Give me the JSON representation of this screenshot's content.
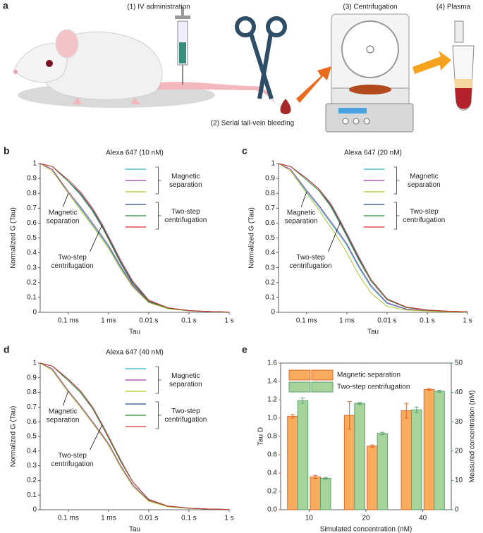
{
  "illustration": {
    "panel": "a",
    "labels": [
      "(1) IV administration",
      "(2) Serial tail-vein bleeding",
      "(3) Centrifugation",
      "(4) Plasma"
    ]
  },
  "chart_data": [
    {
      "type": "line",
      "panel": "b",
      "title": "Alexa 647 (10 nM)",
      "x_label": "Tau",
      "y_label": "Normalized G (Tau)",
      "xscale": "log",
      "x": [
        2e-05,
        4e-05,
        0.0001,
        0.0002,
        0.0004,
        0.0007,
        0.001,
        0.002,
        0.004,
        0.01,
        0.03,
        0.1,
        0.3,
        1
      ],
      "xlim": [
        2e-05,
        1
      ],
      "xticks": [
        {
          "value": 0.0001,
          "label": "0.1 ms"
        },
        {
          "value": 0.001,
          "label": "1 ms"
        },
        {
          "value": 0.01,
          "label": "0.01 s"
        },
        {
          "value": 0.1,
          "label": "0.1 s"
        },
        {
          "value": 1,
          "label": "1 s"
        }
      ],
      "ylim": [
        0,
        1
      ],
      "yticks": [
        0,
        0.1,
        0.2,
        0.3,
        0.4,
        0.5,
        0.6,
        0.7,
        0.8,
        0.9,
        1
      ],
      "series_groups": [
        {
          "label": "Magnetic separation",
          "series": [
            {
              "color": "#2ab7c4",
              "values": [
                1,
                0.96,
                0.8,
                0.7,
                0.59,
                0.5,
                0.44,
                0.3,
                0.18,
                0.07,
                0.025,
                0.01,
                0.005,
                0.002
              ]
            },
            {
              "color": "#9b3aa8",
              "values": [
                1,
                0.96,
                0.81,
                0.71,
                0.6,
                0.51,
                0.45,
                0.31,
                0.18,
                0.07,
                0.026,
                0.011,
                0.005,
                0.002
              ]
            },
            {
              "color": "#b6c22a",
              "values": [
                1,
                0.95,
                0.8,
                0.69,
                0.58,
                0.49,
                0.43,
                0.29,
                0.17,
                0.065,
                0.024,
                0.01,
                0.005,
                0.002
              ]
            }
          ]
        },
        {
          "label": "Two-step centrifugation",
          "series": [
            {
              "color": "#2b4a8c",
              "values": [
                1,
                0.98,
                0.88,
                0.8,
                0.69,
                0.58,
                0.5,
                0.34,
                0.2,
                0.08,
                0.03,
                0.012,
                0.005,
                0.002
              ]
            },
            {
              "color": "#2a8a3a",
              "values": [
                1,
                0.98,
                0.88,
                0.79,
                0.68,
                0.57,
                0.49,
                0.33,
                0.19,
                0.075,
                0.028,
                0.011,
                0.005,
                0.002
              ]
            },
            {
              "color": "#d6322e",
              "values": [
                1,
                0.98,
                0.89,
                0.81,
                0.7,
                0.59,
                0.51,
                0.35,
                0.21,
                0.082,
                0.031,
                0.012,
                0.006,
                0.002
              ]
            }
          ]
        }
      ],
      "annotations": [
        "Magnetic separation",
        "Two-step centrifugation"
      ]
    },
    {
      "type": "line",
      "panel": "c",
      "title": "Alexa 647 (20 nM)",
      "x_label": "Tau",
      "y_label": "Normalized G (Tau)",
      "xscale": "log",
      "x": [
        2e-05,
        4e-05,
        0.0001,
        0.0002,
        0.0004,
        0.0007,
        0.001,
        0.002,
        0.004,
        0.01,
        0.03,
        0.1,
        0.3,
        1
      ],
      "xlim": [
        2e-05,
        1
      ],
      "xticks": [
        {
          "value": 0.0001,
          "label": "0.1 ms"
        },
        {
          "value": 0.001,
          "label": "1 ms"
        },
        {
          "value": 0.01,
          "label": "0.01 s"
        },
        {
          "value": 0.1,
          "label": "0.1 s"
        },
        {
          "value": 1,
          "label": "1 s"
        }
      ],
      "ylim": [
        0,
        1
      ],
      "yticks": [
        0,
        0.1,
        0.2,
        0.3,
        0.4,
        0.5,
        0.6,
        0.7,
        0.8,
        0.9,
        1
      ],
      "series_groups": [
        {
          "label": "Magnetic separation",
          "series": [
            {
              "color": "#2ab7c4",
              "values": [
                1,
                0.96,
                0.81,
                0.71,
                0.6,
                0.51,
                0.45,
                0.3,
                0.17,
                0.06,
                0.02,
                0.01,
                0.005,
                0.003
              ]
            },
            {
              "color": "#9b3aa8",
              "values": [
                1,
                0.96,
                0.82,
                0.72,
                0.61,
                0.52,
                0.46,
                0.31,
                0.18,
                0.065,
                0.022,
                0.01,
                0.005,
                0.003
              ]
            },
            {
              "color": "#b6c22a",
              "values": [
                1,
                0.95,
                0.8,
                0.69,
                0.57,
                0.47,
                0.4,
                0.25,
                0.13,
                0.04,
                0.015,
                0.008,
                0.004,
                0.002
              ]
            }
          ]
        },
        {
          "label": "Two-step centrifugation",
          "series": [
            {
              "color": "#2b4a8c",
              "values": [
                1,
                0.98,
                0.9,
                0.83,
                0.72,
                0.6,
                0.52,
                0.36,
                0.22,
                0.09,
                0.035,
                0.015,
                0.008,
                0.004
              ]
            },
            {
              "color": "#2a8a3a",
              "values": [
                1,
                0.98,
                0.89,
                0.82,
                0.71,
                0.59,
                0.51,
                0.35,
                0.21,
                0.085,
                0.032,
                0.014,
                0.007,
                0.004
              ]
            },
            {
              "color": "#d6322e",
              "values": [
                1,
                0.98,
                0.9,
                0.83,
                0.73,
                0.61,
                0.53,
                0.37,
                0.22,
                0.09,
                0.036,
                0.015,
                0.008,
                0.004
              ]
            }
          ]
        }
      ],
      "annotations": [
        "Magnetic separation",
        "Two-step centrifugation"
      ]
    },
    {
      "type": "line",
      "panel": "d",
      "title": "Alexa 647 (40 nM)",
      "x_label": "Tau",
      "y_label": "Normalized G (Tau)",
      "xscale": "log",
      "x": [
        2e-05,
        4e-05,
        0.0001,
        0.0002,
        0.0004,
        0.0007,
        0.001,
        0.002,
        0.004,
        0.01,
        0.03,
        0.1,
        0.3,
        1
      ],
      "xlim": [
        2e-05,
        1
      ],
      "xticks": [
        {
          "value": 0.0001,
          "label": "0.1 ms"
        },
        {
          "value": 0.001,
          "label": "1 ms"
        },
        {
          "value": 0.01,
          "label": "0.01 s"
        },
        {
          "value": 0.1,
          "label": "0.1 s"
        },
        {
          "value": 1,
          "label": "1 s"
        }
      ],
      "ylim": [
        0,
        1
      ],
      "yticks": [
        0,
        0.1,
        0.2,
        0.3,
        0.4,
        0.5,
        0.6,
        0.7,
        0.8,
        0.9,
        1
      ],
      "series_groups": [
        {
          "label": "Magnetic separation",
          "series": [
            {
              "color": "#2ab7c4",
              "values": [
                1,
                0.96,
                0.81,
                0.71,
                0.6,
                0.51,
                0.45,
                0.3,
                0.17,
                0.06,
                0.02,
                0.01,
                0.005,
                0.002
              ]
            },
            {
              "color": "#9b3aa8",
              "values": [
                1,
                0.96,
                0.81,
                0.71,
                0.6,
                0.51,
                0.45,
                0.3,
                0.17,
                0.062,
                0.021,
                0.01,
                0.005,
                0.002
              ]
            },
            {
              "color": "#b6c22a",
              "values": [
                1,
                0.95,
                0.8,
                0.7,
                0.59,
                0.5,
                0.44,
                0.29,
                0.16,
                0.058,
                0.02,
                0.009,
                0.005,
                0.002
              ]
            }
          ]
        },
        {
          "label": "Two-step centrifugation",
          "series": [
            {
              "color": "#2b4a8c",
              "values": [
                1,
                0.98,
                0.89,
                0.81,
                0.7,
                0.58,
                0.5,
                0.33,
                0.19,
                0.07,
                0.025,
                0.011,
                0.005,
                0.002
              ]
            },
            {
              "color": "#2a8a3a",
              "values": [
                1,
                0.98,
                0.88,
                0.8,
                0.69,
                0.57,
                0.49,
                0.33,
                0.19,
                0.068,
                0.024,
                0.011,
                0.005,
                0.002
              ]
            },
            {
              "color": "#d6322e",
              "values": [
                1,
                0.98,
                0.89,
                0.81,
                0.7,
                0.58,
                0.5,
                0.34,
                0.19,
                0.07,
                0.025,
                0.011,
                0.005,
                0.002
              ]
            }
          ]
        }
      ],
      "annotations": [
        "Magnetic separation",
        "Two-step centrifugation"
      ]
    },
    {
      "type": "bar",
      "panel": "e",
      "x_label": "Simulated concentration (nM)",
      "y_label": "Tau D",
      "y2_label": "Measured concentration (nM)",
      "categories": [
        "10",
        "20",
        "40"
      ],
      "ylim": [
        0,
        1.6
      ],
      "yticks": [
        {
          "value": 0,
          "label": "0.0"
        },
        0.2,
        0.4,
        0.6,
        0.8,
        {
          "value": 1,
          "label": "1.0"
        },
        1.2,
        1.4,
        1.6
      ],
      "y2lim": [
        0,
        50
      ],
      "y2ticks": [
        0,
        10,
        20,
        30,
        40,
        50
      ],
      "y_color": "#e2692a",
      "y2_color": "#3b9a7a",
      "series": [
        {
          "name": "Magnetic separation",
          "color": "#f7ac5e",
          "edge": "#e2692a",
          "values": [
            1.02,
            1.03,
            1.08
          ],
          "errors": [
            0.02,
            0.15,
            0.08
          ]
        },
        {
          "name": "Two-step centrifugation",
          "color": "#a6d49a",
          "edge": "#5fa276",
          "values": [
            1.19,
            1.16,
            1.09
          ],
          "errors": [
            0.03,
            0.01,
            0.03
          ]
        },
        {
          "color": "#f7ac5e",
          "edge": "#e2692a",
          "axis": "y2",
          "values": [
            11.2,
            21.7,
            41.0
          ],
          "errors": [
            0.5,
            0.4,
            0.3
          ]
        },
        {
          "color": "#a6d49a",
          "edge": "#5fa276",
          "axis": "y2",
          "values": [
            10.7,
            26.0,
            40.4
          ],
          "errors": [
            0.3,
            0.4,
            0.3
          ]
        }
      ]
    }
  ]
}
